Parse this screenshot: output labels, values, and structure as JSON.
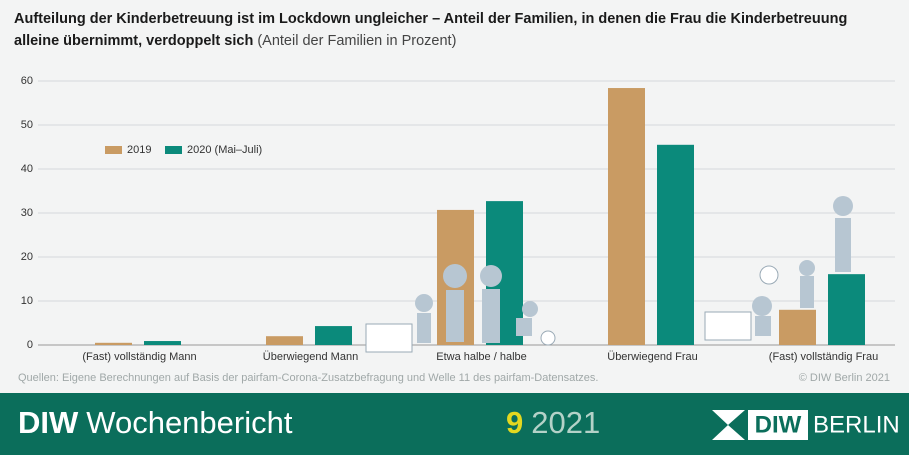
{
  "chart_data": {
    "type": "bar",
    "title": "Aufteilung der Kinderbetreuung ist im Lockdown ungleicher – Anteil der Familien, in denen die Frau die Kinderbetreuung alleine übernimmt, verdoppelt sich",
    "subtitle": "(Anteil der Familien in Prozent)",
    "categories": [
      "(Fast) vollständig Mann",
      "Überwiegend Mann",
      "Etwa halbe / halbe",
      "Überwiegend  Frau",
      "(Fast) vollständig Frau"
    ],
    "series": [
      {
        "name": "2019",
        "color": "#c99b63",
        "values": [
          0.5,
          2.0,
          30.7,
          58.4,
          8.0
        ]
      },
      {
        "name": "2020 (Mai–Juli)",
        "color": "#0b8a7b",
        "values": [
          0.9,
          4.3,
          32.7,
          45.5,
          16.1
        ]
      }
    ],
    "ylim": [
      0,
      60
    ],
    "yticks": [
      0,
      10,
      20,
      30,
      40,
      50,
      60
    ],
    "grid": true,
    "legend": "upper-left"
  },
  "footer": {
    "source": "Quellen: Eigene Berechnungen auf Basis der pairfam-Corona-Zusatzbefragung und Welle 11 des pairfam-Datensatzes.",
    "copyright": "© DIW Berlin 2021",
    "publication_bold": "DIW",
    "publication": "Wochenbericht",
    "issue": "9",
    "year": "2021",
    "logo_bold": "DIW",
    "logo": "BERLIN"
  }
}
